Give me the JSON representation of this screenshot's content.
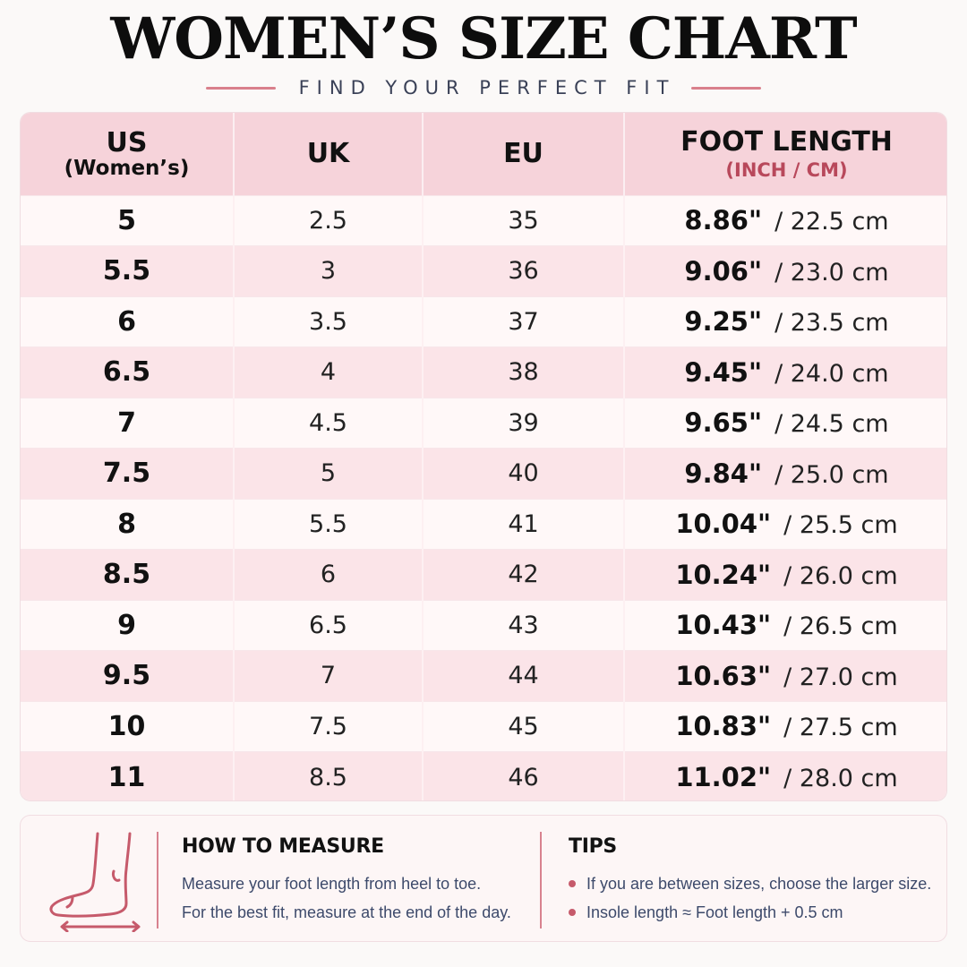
{
  "header": {
    "title": "WOMEN’S SIZE CHART",
    "subtitle": "FIND YOUR PERFECT FIT"
  },
  "table": {
    "headers": {
      "us": "US",
      "us_sub": "(Women’s)",
      "uk": "UK",
      "eu": "EU",
      "length": "FOOT LENGTH",
      "length_sub": "(INCH / CM)"
    },
    "rows": [
      {
        "us": "5",
        "uk": "2.5",
        "eu": "35",
        "inch": "8.86\"",
        "cm": "/ 22.5 cm"
      },
      {
        "us": "5.5",
        "uk": "3",
        "eu": "36",
        "inch": "9.06\"",
        "cm": "/ 23.0 cm"
      },
      {
        "us": "6",
        "uk": "3.5",
        "eu": "37",
        "inch": "9.25\"",
        "cm": "/ 23.5 cm"
      },
      {
        "us": "6.5",
        "uk": "4",
        "eu": "38",
        "inch": "9.45\"",
        "cm": "/ 24.0 cm"
      },
      {
        "us": "7",
        "uk": "4.5",
        "eu": "39",
        "inch": "9.65\"",
        "cm": "/ 24.5 cm"
      },
      {
        "us": "7.5",
        "uk": "5",
        "eu": "40",
        "inch": "9.84\"",
        "cm": "/ 25.0 cm"
      },
      {
        "us": "8",
        "uk": "5.5",
        "eu": "41",
        "inch": "10.04\"",
        "cm": "/ 25.5 cm"
      },
      {
        "us": "8.5",
        "uk": "6",
        "eu": "42",
        "inch": "10.24\"",
        "cm": "/ 26.0 cm"
      },
      {
        "us": "9",
        "uk": "6.5",
        "eu": "43",
        "inch": "10.43\"",
        "cm": "/ 26.5 cm"
      },
      {
        "us": "9.5",
        "uk": "7",
        "eu": "44",
        "inch": "10.63\"",
        "cm": "/ 27.0 cm"
      },
      {
        "us": "10",
        "uk": "7.5",
        "eu": "45",
        "inch": "10.83\"",
        "cm": "/ 27.5 cm"
      },
      {
        "us": "11",
        "uk": "8.5",
        "eu": "46",
        "inch": "11.02\"",
        "cm": "/ 28.0 cm"
      }
    ]
  },
  "measure": {
    "icon": "foot-icon",
    "heading": "HOW TO MEASURE",
    "lines": [
      "Measure your foot length from heel to toe.",
      "For the best fit, measure at the end of the day."
    ]
  },
  "tips": {
    "heading": "TIPS",
    "items": [
      "If you are between sizes, choose the larger size.",
      "Insole length ≈ Foot length + 0.5 cm"
    ]
  },
  "colors": {
    "accent": "#d9808c",
    "header_bg": "#f6d3da",
    "row_alt": "#fbe4e8",
    "sub_accent": "#b8485b"
  }
}
